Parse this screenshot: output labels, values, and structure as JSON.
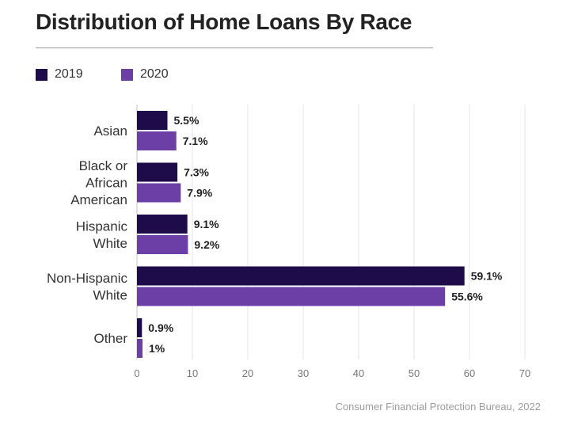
{
  "chart_data": {
    "type": "bar",
    "orientation": "horizontal",
    "title": "Distribution of Home Loans By Race",
    "categories": [
      [
        "Asian"
      ],
      [
        "Black or",
        "African",
        "American"
      ],
      [
        "Hispanic",
        "White"
      ],
      [
        "Non-Hispanic",
        "White"
      ],
      [
        "Other"
      ]
    ],
    "series": [
      {
        "name": "2019",
        "color": "#1e0b4a",
        "values": [
          5.5,
          7.3,
          9.1,
          59.1,
          0.9
        ],
        "labels": [
          "5.5%",
          "7.3%",
          "9.1%",
          "59.1%",
          "0.9%"
        ]
      },
      {
        "name": "2020",
        "color": "#6b3fa5",
        "values": [
          7.1,
          7.9,
          9.2,
          55.6,
          1.0
        ],
        "labels": [
          "7.1%",
          "7.9%",
          "9.2%",
          "55.6%",
          "1%"
        ]
      }
    ],
    "xlim": [
      0,
      70
    ],
    "xticks": [
      0,
      10,
      20,
      30,
      40,
      50,
      60,
      70
    ],
    "grid": "vertical",
    "legend": "top-left",
    "source": "Consumer Financial Protection Bureau, 2022"
  }
}
